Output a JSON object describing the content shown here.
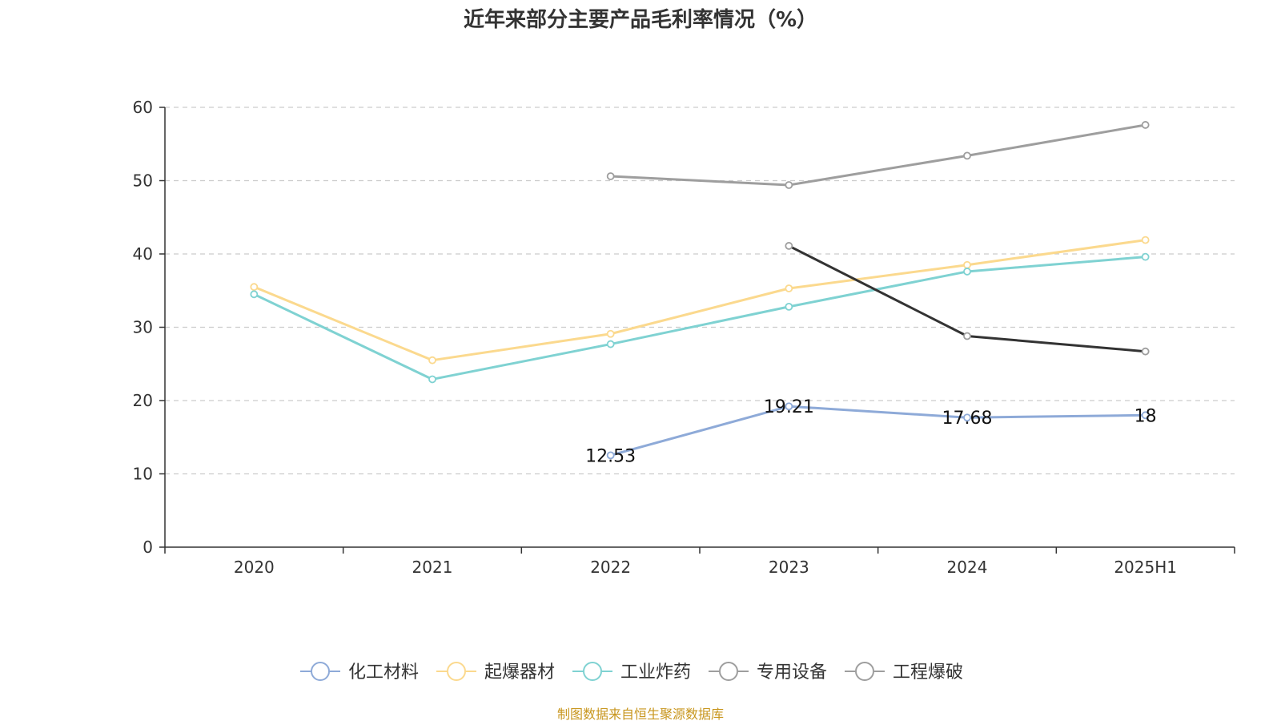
{
  "chart_data": {
    "type": "line",
    "title": "近年来部分主要产品毛利率情况（%）",
    "categories": [
      "2020",
      "2021",
      "2022",
      "2023",
      "2024",
      "2025H1"
    ],
    "ylim": [
      0,
      60
    ],
    "yticks": [
      0,
      10,
      20,
      30,
      40,
      50,
      60
    ],
    "grid": true,
    "legend_position": "bottom",
    "series": [
      {
        "name": "化工材料",
        "color": "#8eaad8",
        "values": [
          null,
          null,
          12.53,
          19.21,
          17.68,
          18
        ],
        "labels": true
      },
      {
        "name": "起爆器材",
        "color": "#fbd98e",
        "values": [
          35.5,
          25.5,
          29.1,
          35.3,
          38.5,
          41.9
        ],
        "labels": false
      },
      {
        "name": "工业炸药",
        "color": "#7fd2d2",
        "values": [
          34.5,
          22.9,
          27.7,
          32.8,
          37.6,
          39.6
        ],
        "labels": false
      },
      {
        "name": "专用设备",
        "color": "#9e9e9e",
        "values": [
          null,
          null,
          50.6,
          49.4,
          53.4,
          57.6
        ],
        "labels": false
      },
      {
        "name": "工程爆破",
        "color": "#333333",
        "marker_color": "#9e9e9e",
        "values": [
          null,
          null,
          null,
          41.1,
          28.8,
          26.7
        ],
        "labels": false
      }
    ]
  },
  "footer": {
    "source": "制图数据来自恒生聚源数据库"
  }
}
